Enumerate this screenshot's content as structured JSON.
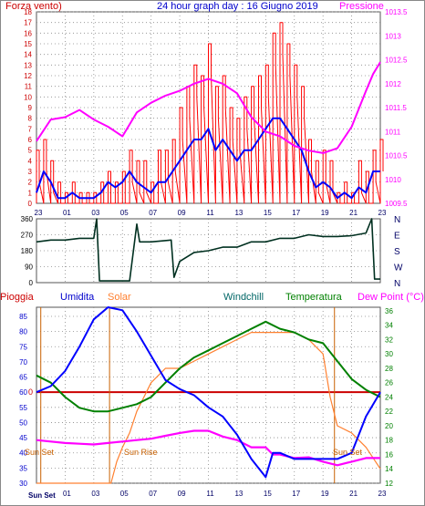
{
  "colors": {
    "background": "#ffffff",
    "frame": "#888888",
    "grid": "#8a8a8a",
    "wind_speed": "#ff0000",
    "wind_avg": "#0000ff",
    "pressure": "#ff00ff",
    "wind_dir": "#003020",
    "rain": "#cc0000",
    "humidity": "#0000ff",
    "solar": "#ff8030",
    "windchill": "#ff00ff",
    "temperature": "#008000",
    "sun_marker": "#c86000"
  },
  "header": {
    "left": "Forza vento)",
    "center": "24 hour graph day : 16 Giugno 2019",
    "right": "Pressione"
  },
  "bottom_legend": {
    "rain": "Pioggia",
    "humidity": "Umidita",
    "solar": "Solar",
    "windchill": "Windchill",
    "temperature": "Temperatura",
    "dewpoint": "Dew Point (°C)"
  },
  "sun_labels": {
    "sunset_left": "Sun Set",
    "sunrise": "Sun Rise",
    "sunset_right": "Sun Set",
    "axis_start": "Sun Set"
  },
  "chart_data": [
    {
      "type": "line",
      "name": "wind-pressure",
      "x_ticks": [
        "23",
        "01",
        "03",
        "05",
        "07",
        "09",
        "11",
        "13",
        "15",
        "17",
        "19",
        "21",
        "23"
      ],
      "y_left_ticks": [
        0,
        1,
        2,
        3,
        4,
        5,
        6,
        7,
        8,
        9,
        10,
        11,
        12,
        13,
        14,
        15,
        16,
        17,
        18
      ],
      "y_left_range": [
        0,
        18
      ],
      "y_right_ticks": [
        "1009.5",
        "1010",
        "1010.5",
        "1011",
        "1011.5",
        "1012",
        "1012.5",
        "1013",
        "1013.5"
      ],
      "y_right_range": [
        1009.5,
        1013.5
      ],
      "grid": true,
      "series": [
        {
          "name": "Forza vento",
          "hours": [
            0,
            0.5,
            1,
            1.5,
            2,
            2.5,
            3,
            3.5,
            4,
            4.5,
            5,
            5.5,
            6,
            6.5,
            7,
            7.5,
            8,
            8.5,
            9,
            9.5,
            10,
            10.5,
            11,
            11.5,
            12,
            12.5,
            13,
            13.5,
            14,
            14.5,
            15,
            15.5,
            16,
            16.5,
            17,
            17.5,
            18,
            18.5,
            19,
            19.5,
            20,
            20.5,
            21,
            21.5,
            22,
            22.5,
            23,
            23.5,
            24
          ],
          "values": [
            5,
            6,
            4,
            2,
            1,
            2,
            1,
            1,
            1,
            2,
            3,
            2,
            3,
            5,
            4,
            4,
            2,
            5,
            5,
            6,
            9,
            11,
            13,
            12,
            15,
            11,
            12,
            9,
            8,
            10,
            11,
            12,
            13,
            16,
            17,
            15,
            13,
            11,
            6,
            4,
            5,
            4,
            1,
            2,
            1,
            4,
            3,
            5,
            6
          ]
        },
        {
          "name": "Vento medio",
          "hours": [
            0,
            0.5,
            1,
            1.5,
            2,
            2.5,
            3,
            3.5,
            4,
            4.5,
            5,
            5.5,
            6,
            6.5,
            7,
            7.5,
            8,
            8.5,
            9,
            9.5,
            10,
            10.5,
            11,
            11.5,
            12,
            12.5,
            13,
            13.5,
            14,
            14.5,
            15,
            15.5,
            16,
            16.5,
            17,
            17.5,
            18,
            18.5,
            19,
            19.5,
            20,
            20.5,
            21,
            21.5,
            22,
            22.5,
            23,
            23.5,
            24
          ],
          "values": [
            1,
            3,
            2,
            0.5,
            0.5,
            1,
            0.5,
            0.5,
            0.5,
            1,
            2,
            1.5,
            2,
            3,
            2,
            1.5,
            1,
            2,
            2,
            3,
            4,
            5,
            6,
            6,
            7,
            5,
            6,
            5,
            4,
            5,
            5,
            6,
            7,
            8,
            8,
            7,
            6,
            5,
            3,
            1.5,
            2,
            1.5,
            0.5,
            1,
            0.5,
            1.5,
            1,
            3,
            3
          ]
        },
        {
          "name": "Pressione",
          "hours": [
            0,
            1,
            2,
            3,
            4,
            5,
            6,
            7,
            8,
            9,
            10,
            11,
            12,
            13,
            14,
            15,
            16,
            17,
            18,
            19,
            20,
            21,
            22,
            23,
            23.5,
            24
          ],
          "values": [
            1010.8,
            1011.25,
            1011.3,
            1011.45,
            1011.25,
            1011.1,
            1010.9,
            1011.4,
            1011.6,
            1011.75,
            1011.85,
            1012.0,
            1012.1,
            1012.0,
            1011.8,
            1011.3,
            1011.0,
            1010.9,
            1010.7,
            1010.6,
            1010.55,
            1010.65,
            1011.1,
            1011.85,
            1012.2,
            1012.45
          ]
        }
      ]
    },
    {
      "type": "line",
      "name": "wind-direction",
      "y_ticks": [
        0,
        90,
        180,
        270,
        360
      ],
      "y_labels_right": [
        "N",
        "W",
        "S",
        "E",
        "N"
      ],
      "y_range": [
        0,
        360
      ],
      "grid": true,
      "series": [
        {
          "name": "Direzione vento",
          "hours": [
            0,
            1,
            2,
            3,
            4,
            4.2,
            4.4,
            6.5,
            7,
            7.2,
            8,
            9.4,
            9.6,
            10,
            11,
            12,
            13,
            14,
            15,
            16,
            17,
            18,
            19,
            20,
            21,
            22,
            23,
            23.4,
            23.6,
            24
          ],
          "values": [
            230,
            240,
            240,
            250,
            250,
            360,
            10,
            10,
            330,
            230,
            230,
            240,
            30,
            120,
            170,
            180,
            200,
            200,
            230,
            230,
            250,
            250,
            270,
            260,
            260,
            265,
            280,
            360,
            20,
            20
          ]
        }
      ]
    },
    {
      "type": "line",
      "name": "temp-humidity",
      "y_left_ticks": [
        30,
        35,
        40,
        45,
        50,
        55,
        60,
        65,
        70,
        75,
        80,
        85
      ],
      "y_left_range": [
        30,
        88
      ],
      "y_right_ticks": [
        12,
        14,
        16,
        18,
        20,
        22,
        24,
        26,
        28,
        30,
        32,
        34,
        36
      ],
      "y_right_range": [
        12,
        36.5
      ],
      "rain_marker": "0",
      "grid": true,
      "series": [
        {
          "name": "Umidita",
          "hours": [
            0,
            1,
            2,
            3,
            4,
            5,
            6,
            7,
            8,
            9,
            10,
            11,
            12,
            13,
            14,
            15,
            16,
            16.5,
            17,
            18,
            19,
            20,
            21,
            22,
            23,
            24
          ],
          "values": [
            60,
            62,
            67,
            75,
            84,
            88,
            87,
            80,
            72,
            64,
            61,
            59,
            55,
            52,
            46,
            38,
            32,
            40,
            40,
            38,
            38,
            38,
            38,
            40,
            52,
            60
          ]
        },
        {
          "name": "Solar",
          "hours": [
            0,
            5,
            5.2,
            5.6,
            6,
            6.5,
            7,
            8,
            9,
            10,
            11,
            12,
            13,
            14,
            15,
            16,
            17,
            18,
            19,
            20,
            20.5,
            21,
            22,
            23,
            24
          ],
          "values": [
            12,
            12,
            12,
            15,
            17,
            19,
            22,
            26,
            28,
            28,
            29,
            30,
            31,
            32,
            33,
            33,
            33,
            33,
            32,
            30,
            24,
            20,
            19,
            17,
            14
          ]
        },
        {
          "name": "Windchill",
          "hours": [
            0,
            1,
            2,
            3,
            4,
            5,
            6,
            7,
            8,
            9,
            10,
            11,
            12,
            13,
            14,
            15,
            16,
            16.5,
            17,
            18,
            19,
            20,
            21,
            22,
            23,
            24
          ],
          "values": [
            18,
            17.8,
            17.6,
            17.5,
            17.4,
            17.6,
            17.8,
            18,
            18.2,
            18.6,
            19,
            19.3,
            19.3,
            18.5,
            18,
            17,
            17,
            16,
            16,
            15.5,
            15.6,
            15,
            14.5,
            15,
            15.5,
            15.5
          ]
        },
        {
          "name": "Temperatura",
          "hours": [
            0,
            1,
            2,
            3,
            4,
            5,
            6,
            7,
            8,
            9,
            10,
            11,
            12,
            13,
            14,
            15,
            16,
            17,
            18,
            19,
            20,
            21,
            22,
            23,
            24
          ],
          "values": [
            27,
            26,
            24,
            22.5,
            22,
            22,
            22.5,
            23,
            24,
            26,
            28,
            29.5,
            30.5,
            31.5,
            32.5,
            33.5,
            34.5,
            33.5,
            33,
            32,
            31.5,
            29,
            26.5,
            25,
            24
          ]
        }
      ]
    }
  ]
}
